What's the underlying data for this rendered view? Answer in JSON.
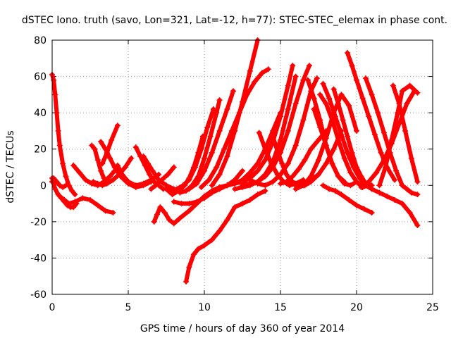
{
  "chart_data": {
    "type": "line",
    "title": "dSTEC Iono. truth (savo, Lon=321, Lat=-12, h=77): STEC-STEC_elemax in phase cont.",
    "xlabel": "GPS time / hours of day 360 of year 2014",
    "ylabel": "dSTEC  / TECUs",
    "xlim": [
      0,
      25
    ],
    "ylim": [
      -60,
      80
    ],
    "xticks": [
      0,
      5,
      10,
      15,
      20,
      25
    ],
    "yticks": [
      -60,
      -40,
      -20,
      0,
      20,
      40,
      60,
      80
    ],
    "grid": true,
    "legend": "none",
    "marker": "plus",
    "color": "#ff0000",
    "series": [
      {
        "x": [
          0.0,
          0.1,
          0.2,
          0.3,
          0.4,
          0.5,
          0.7,
          0.9,
          1.1,
          1.3,
          1.5
        ],
        "y": [
          61,
          58,
          50,
          40,
          30,
          22,
          12,
          5,
          0,
          -3,
          -5
        ]
      },
      {
        "x": [
          0.0,
          0.2,
          0.4,
          0.6,
          0.8,
          1.0,
          1.2,
          1.4,
          1.6
        ],
        "y": [
          4,
          -2,
          -5,
          -7,
          -9,
          -11,
          -12,
          -12,
          -10
        ]
      },
      {
        "x": [
          0.5,
          0.8,
          1.1,
          1.5,
          2.0,
          2.5,
          3.0,
          3.5,
          4.0
        ],
        "y": [
          -6,
          -8,
          -10,
          -9,
          -7,
          -8,
          -11,
          -14,
          -15
        ]
      },
      {
        "x": [
          0.0,
          0.1,
          0.3,
          0.5,
          0.7,
          0.9
        ],
        "y": [
          2,
          4,
          2,
          0,
          -1,
          0
        ]
      },
      {
        "x": [
          1.4,
          1.8,
          2.2,
          2.6,
          3.0,
          3.4,
          3.8,
          4.1
        ],
        "y": [
          11,
          7,
          3,
          1,
          0,
          2,
          5,
          8
        ]
      },
      {
        "x": [
          2.6,
          2.8,
          3.0,
          3.2,
          3.4
        ],
        "y": [
          22,
          20,
          14,
          8,
          4
        ]
      },
      {
        "x": [
          2.7,
          3.0,
          3.3,
          3.6,
          4.0,
          4.4,
          4.8,
          5.2
        ],
        "y": [
          2,
          1,
          0,
          1,
          3,
          6,
          10,
          15
        ]
      },
      {
        "x": [
          3.2,
          3.5,
          3.8,
          4.1,
          4.5,
          5.0,
          5.5,
          6.0,
          6.5
        ],
        "y": [
          24,
          20,
          15,
          10,
          5,
          1,
          -1,
          0,
          2
        ]
      },
      {
        "x": [
          3.3,
          3.6,
          3.9,
          4.3
        ],
        "y": [
          12,
          18,
          25,
          33
        ]
      },
      {
        "x": [
          4.3,
          4.6,
          5.0,
          5.5,
          6.0,
          6.5,
          7.0
        ],
        "y": [
          11,
          6,
          2,
          0,
          1,
          3,
          6
        ]
      },
      {
        "x": [
          5.5,
          5.8,
          6.1,
          6.4,
          6.7,
          7.0,
          7.3
        ],
        "y": [
          21,
          16,
          11,
          6,
          2,
          0,
          -2
        ]
      },
      {
        "x": [
          6.0,
          6.3,
          6.6,
          7.0,
          7.5,
          8.0,
          8.5
        ],
        "y": [
          16,
          12,
          8,
          3,
          0,
          -2,
          -3
        ]
      },
      {
        "x": [
          6.5,
          6.8,
          7.2,
          7.6,
          8.0
        ],
        "y": [
          -2,
          0,
          3,
          6,
          10
        ]
      },
      {
        "x": [
          6.7,
          6.9,
          7.1,
          7.4,
          7.7,
          8.0,
          8.4,
          9.0,
          9.5,
          10.0,
          10.5,
          11.0,
          11.5,
          12.0
        ],
        "y": [
          -20,
          -16,
          -12,
          -15,
          -19,
          -21,
          -18,
          -14,
          -10,
          -6,
          -3,
          -1,
          0,
          2
        ]
      },
      {
        "x": [
          7.5,
          7.9,
          8.3,
          8.7,
          9.0,
          9.3,
          9.6,
          9.9
        ],
        "y": [
          -2,
          -5,
          -3,
          0,
          4,
          10,
          18,
          27
        ]
      },
      {
        "x": [
          8.0,
          8.5,
          9.0,
          9.5,
          10.0,
          10.5,
          11.0,
          11.5,
          12.0,
          12.5
        ],
        "y": [
          -9,
          -10,
          -10,
          -9,
          -7,
          -4,
          -2,
          0,
          3,
          8
        ]
      },
      {
        "x": [
          8.8,
          9.0,
          9.3,
          9.6,
          10.0,
          10.5,
          11.0,
          11.5,
          12.0,
          12.5,
          13.0,
          13.5,
          14.0
        ],
        "y": [
          -53,
          -45,
          -38,
          -35,
          -33,
          -30,
          -25,
          -19,
          -12,
          -10,
          -8,
          -5,
          -3
        ]
      },
      {
        "x": [
          7.8,
          8.2,
          8.6,
          9.0,
          9.4,
          9.8,
          10.2,
          10.6
        ],
        "y": [
          -3,
          -2,
          0,
          3,
          10,
          20,
          32,
          42
        ]
      },
      {
        "x": [
          8.4,
          8.8,
          9.2,
          9.6,
          10.0,
          10.4,
          10.8,
          11.0
        ],
        "y": [
          -4,
          -3,
          0,
          5,
          15,
          27,
          40,
          47
        ]
      },
      {
        "x": [
          9.0,
          9.5,
          10.0,
          10.5,
          11.0,
          11.5,
          11.9
        ],
        "y": [
          -2,
          1,
          8,
          18,
          30,
          42,
          52
        ]
      },
      {
        "x": [
          9.8,
          10.3,
          10.8,
          11.3,
          11.8,
          12.3,
          12.8,
          13.3,
          13.8,
          14.2
        ],
        "y": [
          -1,
          3,
          10,
          20,
          30,
          40,
          50,
          57,
          62,
          64
        ]
      },
      {
        "x": [
          10.5,
          11.0,
          11.5,
          12.0,
          12.5,
          13.0,
          13.5
        ],
        "y": [
          0,
          6,
          16,
          30,
          46,
          63,
          80
        ]
      },
      {
        "x": [
          11.0,
          11.5,
          12.0,
          12.5,
          13.0,
          13.5,
          14.0,
          14.5,
          15.0
        ],
        "y": [
          -1,
          0,
          1,
          3,
          7,
          12,
          20,
          30,
          40
        ]
      },
      {
        "x": [
          11.5,
          12.0,
          12.5,
          13.0,
          13.5,
          14.0,
          14.5,
          15.0,
          15.5,
          15.8
        ],
        "y": [
          0,
          1,
          2,
          4,
          8,
          14,
          24,
          38,
          55,
          66
        ]
      },
      {
        "x": [
          12.0,
          12.5,
          13.0,
          13.5,
          14.0,
          14.5,
          15.0,
          15.5,
          16.0
        ],
        "y": [
          -2,
          -1,
          0,
          2,
          6,
          13,
          25,
          42,
          60
        ]
      },
      {
        "x": [
          12.5,
          13.0,
          13.5,
          14.0,
          14.5,
          15.0,
          15.5,
          16.0,
          16.5,
          16.9
        ],
        "y": [
          0,
          1,
          2,
          5,
          10,
          18,
          30,
          45,
          58,
          66
        ]
      },
      {
        "x": [
          13.0,
          13.5,
          14.0,
          14.5,
          15.0,
          15.5,
          16.0,
          16.5,
          17.0,
          17.4
        ],
        "y": [
          3,
          1,
          0,
          2,
          6,
          12,
          22,
          36,
          52,
          59
        ]
      },
      {
        "x": [
          13.6,
          14.0,
          14.4,
          14.8,
          15.2,
          15.6,
          16.0,
          16.5
        ],
        "y": [
          29,
          20,
          12,
          6,
          2,
          0,
          1,
          3
        ]
      },
      {
        "x": [
          14.5,
          14.8,
          15.1,
          15.4,
          15.7,
          16.0,
          16.5,
          17.0,
          17.5
        ],
        "y": [
          27,
          19,
          12,
          6,
          2,
          0,
          1,
          3,
          6
        ]
      },
      {
        "x": [
          15.0,
          15.4,
          15.8,
          16.2,
          16.6,
          17.0,
          17.5,
          18.0
        ],
        "y": [
          1,
          2,
          5,
          9,
          14,
          20,
          25,
          30
        ]
      },
      {
        "x": [
          15.8,
          16.2,
          16.6,
          17.0,
          17.5,
          18.0,
          18.5,
          19.0
        ],
        "y": [
          2,
          0,
          0,
          2,
          6,
          12,
          20,
          30
        ]
      },
      {
        "x": [
          16.0,
          16.5,
          17.0,
          17.5,
          18.0,
          18.5,
          19.0,
          19.5,
          20.0
        ],
        "y": [
          -2,
          0,
          5,
          14,
          26,
          40,
          50,
          44,
          30
        ]
      },
      {
        "x": [
          16.8,
          17.2,
          17.6,
          18.0,
          18.4,
          18.8,
          19.2
        ],
        "y": [
          58,
          48,
          36,
          22,
          12,
          5,
          2
        ]
      },
      {
        "x": [
          17.2,
          17.6,
          18.0,
          18.4,
          18.8,
          19.2,
          19.6,
          20.0
        ],
        "y": [
          42,
          32,
          22,
          12,
          5,
          1,
          0,
          2
        ]
      },
      {
        "x": [
          17.6,
          18.0,
          18.4,
          18.8,
          19.2,
          19.6,
          20.0,
          20.4,
          20.8
        ],
        "y": [
          50,
          45,
          36,
          25,
          15,
          7,
          2,
          -1,
          0
        ]
      },
      {
        "x": [
          17.8,
          18.2,
          18.6,
          19.0,
          19.4,
          19.8,
          20.2,
          20.6,
          21.0
        ],
        "y": [
          56,
          48,
          38,
          28,
          18,
          10,
          4,
          0,
          -2
        ]
      },
      {
        "x": [
          17.8,
          18.2,
          18.6,
          19.0,
          19.5,
          20.0,
          20.5,
          21.0
        ],
        "y": [
          0,
          -2,
          -3,
          -5,
          -8,
          -11,
          -13,
          -15
        ]
      },
      {
        "x": [
          18.5,
          18.8,
          19.1,
          19.4,
          19.7,
          20.0,
          20.3,
          20.6,
          21.0
        ],
        "y": [
          53,
          45,
          36,
          27,
          18,
          10,
          5,
          1,
          0
        ]
      },
      {
        "x": [
          19.4,
          19.7,
          20.0,
          20.4,
          20.8,
          21.2,
          21.6,
          22.0,
          22.5
        ],
        "y": [
          73,
          66,
          58,
          48,
          38,
          28,
          18,
          10,
          3
        ]
      },
      {
        "x": [
          20.3,
          20.8,
          21.3,
          21.8,
          22.3,
          22.8,
          23.3,
          23.8
        ],
        "y": [
          -1,
          2,
          7,
          14,
          23,
          34,
          45,
          52
        ]
      },
      {
        "x": [
          20.6,
          21.0,
          21.4,
          21.8,
          22.2,
          22.6,
          23.0
        ],
        "y": [
          59,
          50,
          40,
          29,
          18,
          8,
          0
        ]
      },
      {
        "x": [
          20.6,
          21.0,
          21.5,
          22.0,
          22.5,
          23.0,
          23.5,
          24.0
        ],
        "y": [
          0,
          -2,
          -4,
          -6,
          -8,
          -10,
          -15,
          -22
        ]
      },
      {
        "x": [
          21.5,
          21.9,
          22.3,
          22.7,
          23.0,
          23.5,
          24.0
        ],
        "y": [
          0,
          10,
          25,
          40,
          52,
          55,
          51
        ]
      },
      {
        "x": [
          22.4,
          22.8,
          23.2,
          23.6,
          24.0
        ],
        "y": [
          55,
          45,
          30,
          15,
          2
        ]
      },
      {
        "x": [
          23.0,
          23.3,
          23.6,
          24.0
        ],
        "y": [
          0,
          -2,
          -4,
          -5
        ]
      }
    ]
  }
}
